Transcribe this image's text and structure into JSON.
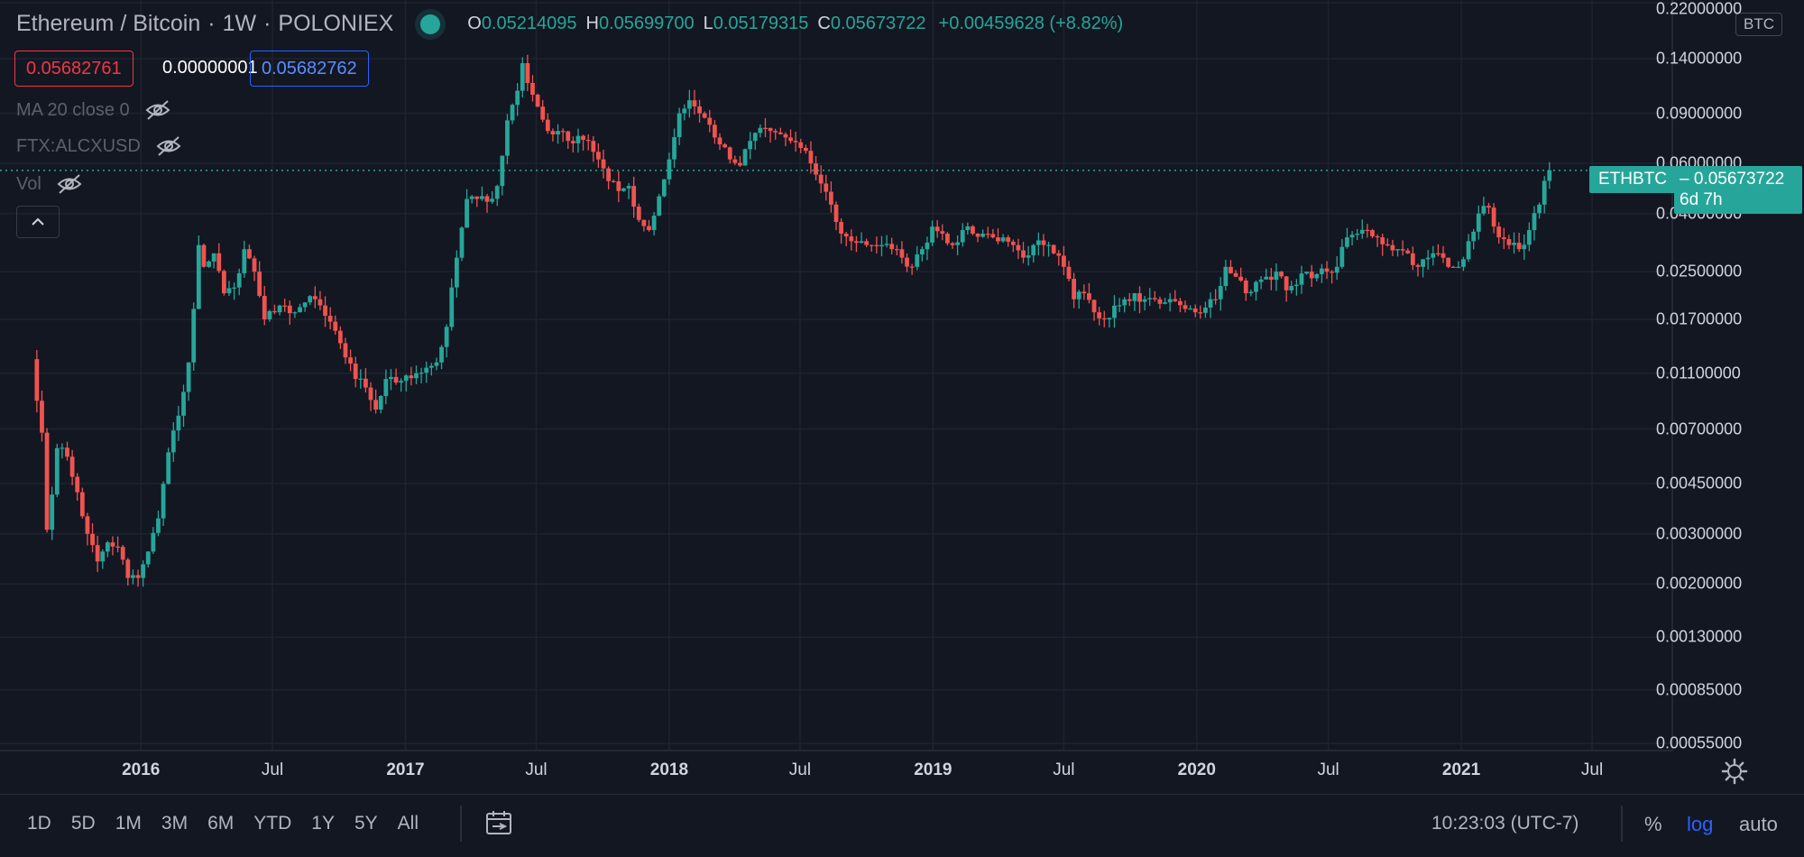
{
  "header": {
    "symbol": "Ethereum / Bitcoin",
    "interval": "1W",
    "exchange": "POLONIEX",
    "sep1": "·",
    "sep2": "·",
    "o_label": "O",
    "o_value": "0.05214095",
    "h_label": "H",
    "h_value": "0.05699700",
    "l_label": "L",
    "l_value": "0.05179315",
    "c_label": "C",
    "c_value": "0.05673722",
    "change": "+0.00459628 (+8.82%)"
  },
  "bid_ask": {
    "bid": "0.05682761",
    "spread": "0.00000001",
    "ask": "0.05682762"
  },
  "indicators": [
    {
      "label": "MA 20 close 0"
    },
    {
      "label": "FTX:ALCXUSD"
    },
    {
      "label": "Vol"
    }
  ],
  "currency_badge": "BTC",
  "last_price": {
    "ticker": "ETHBTC",
    "value": "0.05673722",
    "countdown": "6d 7h"
  },
  "bottom_bar": {
    "ranges": [
      "1D",
      "5D",
      "1M",
      "3M",
      "6M",
      "YTD",
      "1Y",
      "5Y",
      "All"
    ],
    "clock": "10:23:03 (UTC-7)",
    "percent": "%",
    "log": "log",
    "auto": "auto"
  },
  "icons": {
    "collapse": "chevron-up-icon",
    "eye": "eye-crossed-icon",
    "calendar": "calendar-range-icon",
    "settings": "gear-icon",
    "live": "live-dot-icon"
  },
  "colors": {
    "up": "#26a69a",
    "down": "#ef5350",
    "background": "#131722",
    "grid": "#1f2330",
    "accent": "#2962ff"
  },
  "chart_data": {
    "type": "candlestick",
    "scale": "log",
    "y_ticks": [
      "0.22000000",
      "0.14000000",
      "0.09000000",
      "0.06000000",
      "0.04000000",
      "0.02500000",
      "0.01700000",
      "0.01100000",
      "0.00700000",
      "0.00450000",
      "0.00300000",
      "0.00200000",
      "0.00130000",
      "0.00085000",
      "0.00055000"
    ],
    "x_ticks": [
      {
        "label": "2016",
        "date": "2016-01-01",
        "bold": true
      },
      {
        "label": "Jul",
        "date": "2016-07-01",
        "bold": false
      },
      {
        "label": "2017",
        "date": "2017-01-01",
        "bold": true
      },
      {
        "label": "Jul",
        "date": "2017-07-01",
        "bold": false
      },
      {
        "label": "2018",
        "date": "2018-01-01",
        "bold": true
      },
      {
        "label": "Jul",
        "date": "2018-07-01",
        "bold": false
      },
      {
        "label": "2019",
        "date": "2019-01-01",
        "bold": true
      },
      {
        "label": "Jul",
        "date": "2019-07-01",
        "bold": false
      },
      {
        "label": "2020",
        "date": "2020-01-01",
        "bold": true
      },
      {
        "label": "Jul",
        "date": "2020-07-01",
        "bold": false
      },
      {
        "label": "2021",
        "date": "2021-01-01",
        "bold": true
      },
      {
        "label": "Jul",
        "date": "2021-07-01",
        "bold": false
      }
    ],
    "x_range": [
      "2015-06-20",
      "2021-10-20"
    ],
    "y_range": [
      0.00052,
      0.225
    ],
    "close_path": [
      [
        "2015-08-10",
        0.0088
      ],
      [
        "2015-08-17",
        0.0068
      ],
      [
        "2015-08-24",
        0.0031
      ],
      [
        "2015-09-07",
        0.006
      ],
      [
        "2015-09-21",
        0.0056
      ],
      [
        "2015-10-05",
        0.0042
      ],
      [
        "2015-10-19",
        0.003
      ],
      [
        "2015-11-02",
        0.0024
      ],
      [
        "2015-11-16",
        0.0028
      ],
      [
        "2015-11-30",
        0.0027
      ],
      [
        "2015-12-14",
        0.0021
      ],
      [
        "2015-12-28",
        0.0021
      ],
      [
        "2016-01-11",
        0.0026
      ],
      [
        "2016-01-25",
        0.0034
      ],
      [
        "2016-02-08",
        0.0058
      ],
      [
        "2016-02-22",
        0.0078
      ],
      [
        "2016-03-07",
        0.012
      ],
      [
        "2016-03-14",
        0.0185
      ],
      [
        "2016-03-21",
        0.031
      ],
      [
        "2016-03-28",
        0.026
      ],
      [
        "2016-04-11",
        0.029
      ],
      [
        "2016-04-25",
        0.021
      ],
      [
        "2016-05-09",
        0.022
      ],
      [
        "2016-05-23",
        0.03
      ],
      [
        "2016-06-06",
        0.025
      ],
      [
        "2016-06-20",
        0.017
      ],
      [
        "2016-07-04",
        0.018
      ],
      [
        "2016-07-18",
        0.019
      ],
      [
        "2016-08-01",
        0.018
      ],
      [
        "2016-08-15",
        0.0195
      ],
      [
        "2016-08-29",
        0.02
      ],
      [
        "2016-09-12",
        0.0175
      ],
      [
        "2016-09-26",
        0.0155
      ],
      [
        "2016-10-10",
        0.0125
      ],
      [
        "2016-10-24",
        0.0105
      ],
      [
        "2016-11-07",
        0.0098
      ],
      [
        "2016-11-21",
        0.0082
      ],
      [
        "2016-12-05",
        0.0105
      ],
      [
        "2016-12-19",
        0.0102
      ],
      [
        "2017-01-02",
        0.0108
      ],
      [
        "2017-01-16",
        0.011
      ],
      [
        "2017-01-30",
        0.0115
      ],
      [
        "2017-02-13",
        0.012
      ],
      [
        "2017-02-27",
        0.016
      ],
      [
        "2017-03-13",
        0.028
      ],
      [
        "2017-03-27",
        0.045
      ],
      [
        "2017-04-10",
        0.045
      ],
      [
        "2017-04-24",
        0.044
      ],
      [
        "2017-05-08",
        0.05
      ],
      [
        "2017-05-22",
        0.085
      ],
      [
        "2017-06-05",
        0.108
      ],
      [
        "2017-06-12",
        0.135
      ],
      [
        "2017-06-19",
        0.115
      ],
      [
        "2017-07-03",
        0.095
      ],
      [
        "2017-07-17",
        0.078
      ],
      [
        "2017-07-31",
        0.078
      ],
      [
        "2017-08-14",
        0.072
      ],
      [
        "2017-08-28",
        0.075
      ],
      [
        "2017-09-11",
        0.072
      ],
      [
        "2017-09-25",
        0.062
      ],
      [
        "2017-10-09",
        0.052
      ],
      [
        "2017-10-23",
        0.048
      ],
      [
        "2017-11-06",
        0.05
      ],
      [
        "2017-11-20",
        0.038
      ],
      [
        "2017-12-04",
        0.035
      ],
      [
        "2017-12-18",
        0.046
      ],
      [
        "2018-01-01",
        0.062
      ],
      [
        "2018-01-15",
        0.09
      ],
      [
        "2018-01-29",
        0.1
      ],
      [
        "2018-02-12",
        0.09
      ],
      [
        "2018-02-26",
        0.082
      ],
      [
        "2018-03-12",
        0.07
      ],
      [
        "2018-03-26",
        0.062
      ],
      [
        "2018-04-09",
        0.059
      ],
      [
        "2018-04-23",
        0.072
      ],
      [
        "2018-05-07",
        0.08
      ],
      [
        "2018-05-21",
        0.078
      ],
      [
        "2018-06-04",
        0.076
      ],
      [
        "2018-06-18",
        0.072
      ],
      [
        "2018-07-02",
        0.068
      ],
      [
        "2018-07-16",
        0.06
      ],
      [
        "2018-07-30",
        0.051
      ],
      [
        "2018-08-13",
        0.043
      ],
      [
        "2018-08-27",
        0.034
      ],
      [
        "2018-09-10",
        0.032
      ],
      [
        "2018-09-24",
        0.032
      ],
      [
        "2018-10-08",
        0.031
      ],
      [
        "2018-10-22",
        0.031
      ],
      [
        "2018-11-05",
        0.03
      ],
      [
        "2018-11-19",
        0.028
      ],
      [
        "2018-12-03",
        0.026
      ],
      [
        "2018-12-17",
        0.03
      ],
      [
        "2018-12-31",
        0.036
      ],
      [
        "2019-01-14",
        0.034
      ],
      [
        "2019-01-28",
        0.031
      ],
      [
        "2019-02-11",
        0.035
      ],
      [
        "2019-02-25",
        0.034
      ],
      [
        "2019-03-11",
        0.034
      ],
      [
        "2019-03-25",
        0.033
      ],
      [
        "2019-04-08",
        0.033
      ],
      [
        "2019-04-22",
        0.031
      ],
      [
        "2019-05-06",
        0.028
      ],
      [
        "2019-05-20",
        0.031
      ],
      [
        "2019-06-03",
        0.031
      ],
      [
        "2019-06-17",
        0.029
      ],
      [
        "2019-07-01",
        0.026
      ],
      [
        "2019-07-15",
        0.02
      ],
      [
        "2019-07-29",
        0.021
      ],
      [
        "2019-08-12",
        0.018
      ],
      [
        "2019-08-26",
        0.017
      ],
      [
        "2019-09-09",
        0.019
      ],
      [
        "2019-09-23",
        0.02
      ],
      [
        "2019-10-07",
        0.021
      ],
      [
        "2019-10-21",
        0.02
      ],
      [
        "2019-11-04",
        0.02
      ],
      [
        "2019-11-18",
        0.0195
      ],
      [
        "2019-12-02",
        0.0197
      ],
      [
        "2019-12-16",
        0.0185
      ],
      [
        "2019-12-30",
        0.018
      ],
      [
        "2020-01-13",
        0.0187
      ],
      [
        "2020-01-27",
        0.02
      ],
      [
        "2020-02-10",
        0.026
      ],
      [
        "2020-02-24",
        0.024
      ],
      [
        "2020-03-09",
        0.021
      ],
      [
        "2020-03-23",
        0.023
      ],
      [
        "2020-04-06",
        0.024
      ],
      [
        "2020-04-20",
        0.025
      ],
      [
        "2020-05-04",
        0.0215
      ],
      [
        "2020-05-18",
        0.0225
      ],
      [
        "2020-06-01",
        0.025
      ],
      [
        "2020-06-15",
        0.0245
      ],
      [
        "2020-06-29",
        0.025
      ],
      [
        "2020-07-13",
        0.026
      ],
      [
        "2020-07-27",
        0.033
      ],
      [
        "2020-08-10",
        0.034
      ],
      [
        "2020-08-24",
        0.035
      ],
      [
        "2020-09-07",
        0.033
      ],
      [
        "2020-09-21",
        0.031
      ],
      [
        "2020-10-05",
        0.03
      ],
      [
        "2020-10-19",
        0.029
      ],
      [
        "2020-11-02",
        0.026
      ],
      [
        "2020-11-16",
        0.028
      ],
      [
        "2020-11-30",
        0.029
      ],
      [
        "2020-12-14",
        0.026
      ],
      [
        "2020-12-28",
        0.026
      ],
      [
        "2021-01-11",
        0.032
      ],
      [
        "2021-01-25",
        0.04
      ],
      [
        "2021-02-08",
        0.042
      ],
      [
        "2021-02-22",
        0.033
      ],
      [
        "2021-03-08",
        0.031
      ],
      [
        "2021-03-22",
        0.03
      ],
      [
        "2021-04-05",
        0.035
      ],
      [
        "2021-04-19",
        0.043
      ],
      [
        "2021-04-26",
        0.0521
      ],
      [
        "2021-05-03",
        0.05674
      ]
    ]
  }
}
